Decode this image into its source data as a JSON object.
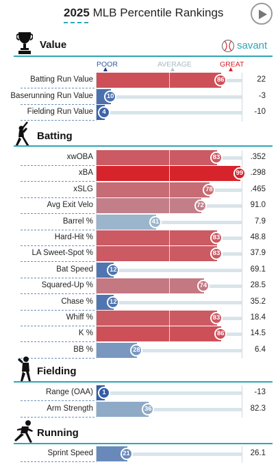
{
  "header": {
    "title_year": "2025",
    "title_rest": "MLB Percentile Rankings"
  },
  "brand": {
    "name": "savant"
  },
  "scale": {
    "poor": "POOR",
    "average": "AVERAGE",
    "great": "GREAT"
  },
  "sections": {
    "value": {
      "title": "Value",
      "icon": "trophy-icon",
      "rows": [
        {
          "label": "Batting Run Value",
          "percentile": 86,
          "value": "22"
        },
        {
          "label": "Baserunning Run Value",
          "percentile": 10,
          "value": "-3"
        },
        {
          "label": "Fielding Run Value",
          "percentile": 4,
          "value": "-10"
        }
      ]
    },
    "batting": {
      "title": "Batting",
      "icon": "batter-icon",
      "rows": [
        {
          "label": "xwOBA",
          "percentile": 83,
          "value": ".352"
        },
        {
          "label": "xBA",
          "percentile": 99,
          "value": ".298"
        },
        {
          "label": "xSLG",
          "percentile": 78,
          "value": ".465"
        },
        {
          "label": "Avg Exit Velo",
          "percentile": 72,
          "value": "91.0"
        },
        {
          "label": "Barrel %",
          "percentile": 41,
          "value": "7.9"
        },
        {
          "label": "Hard-Hit %",
          "percentile": 83,
          "value": "48.8"
        },
        {
          "label": "LA Sweet-Spot %",
          "percentile": 83,
          "value": "37.9"
        },
        {
          "label": "Bat Speed",
          "percentile": 12,
          "value": "69.1"
        },
        {
          "label": "Squared-Up %",
          "percentile": 74,
          "value": "28.5"
        },
        {
          "label": "Chase %",
          "percentile": 12,
          "value": "35.2"
        },
        {
          "label": "Whiff %",
          "percentile": 83,
          "value": "18.4"
        },
        {
          "label": "K %",
          "percentile": 86,
          "value": "14.5"
        },
        {
          "label": "BB %",
          "percentile": 28,
          "value": "6.4"
        }
      ]
    },
    "fielding": {
      "title": "Fielding",
      "icon": "fielder-icon",
      "rows": [
        {
          "label": "Range (OAA)",
          "percentile": 1,
          "value": "-13"
        },
        {
          "label": "Arm Strength",
          "percentile": 36,
          "value": "82.3"
        }
      ]
    },
    "running": {
      "title": "Running",
      "icon": "runner-icon",
      "rows": [
        {
          "label": "Sprint Speed",
          "percentile": 21,
          "value": "26.1"
        }
      ]
    }
  },
  "colors": {
    "accent": "#2aa6b6",
    "great": "#d82129",
    "poor": "#325aa5",
    "average": "#b2c9d4"
  }
}
